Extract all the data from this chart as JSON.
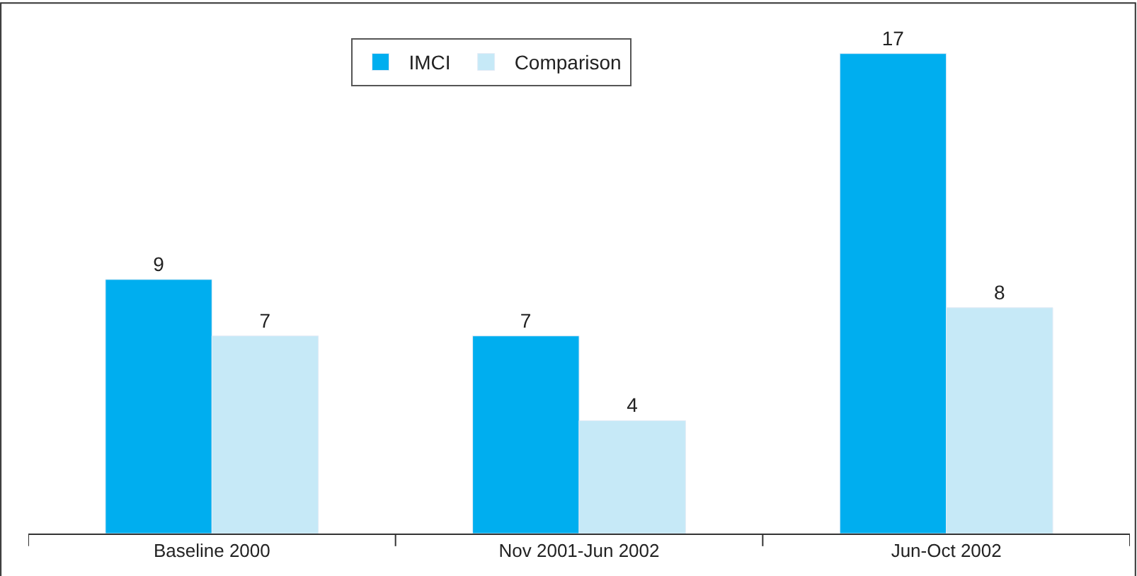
{
  "chart_data": {
    "type": "bar",
    "categories": [
      "Baseline 2000",
      "Nov 2001-Jun 2002",
      "Jun-Oct 2002"
    ],
    "series": [
      {
        "name": "IMCI",
        "color": "#00aeef",
        "values": [
          9,
          7,
          17
        ]
      },
      {
        "name": "Comparison",
        "color": "#c6e9f7",
        "values": [
          7,
          4,
          8
        ]
      }
    ],
    "data_labels": true,
    "legend": "top"
  }
}
